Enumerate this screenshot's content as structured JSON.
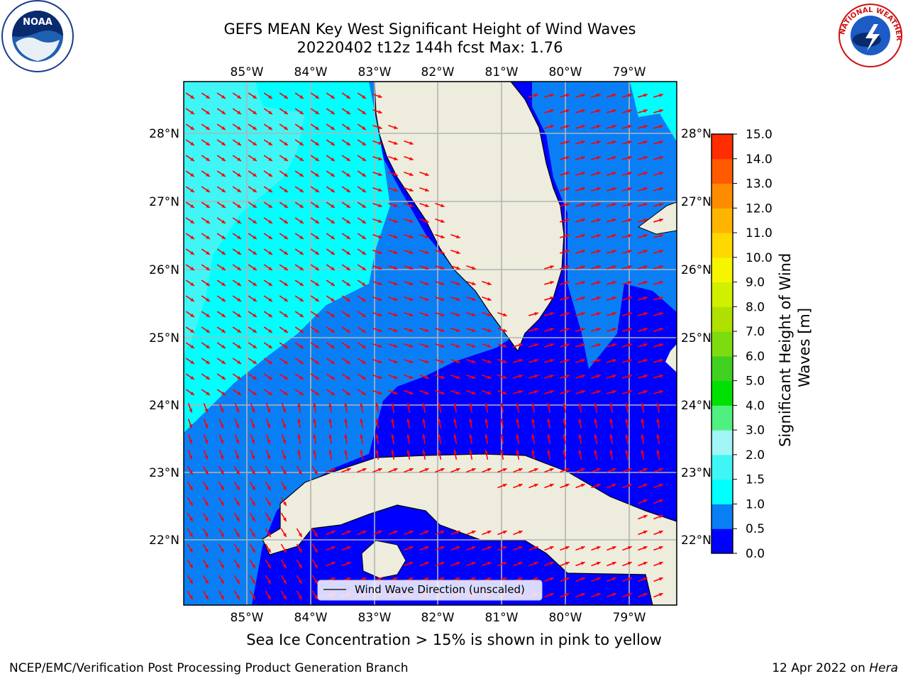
{
  "title_line1": "GEFS MEAN Key West Significant Height of Wind Waves",
  "title_line2": "20220402 t12z 144h fcst   Max: 1.76",
  "lon_labels": [
    "85°W",
    "84°W",
    "83°W",
    "82°W",
    "81°W",
    "80°W",
    "79°W"
  ],
  "lat_labels": [
    "28°N",
    "27°N",
    "26°N",
    "25°N",
    "24°N",
    "23°N",
    "22°N"
  ],
  "legend_label": "Wind Wave Direction (unscaled)",
  "colorbar": {
    "title": "Significant Height of Wind Waves [m]",
    "tick_labels": [
      "0.0",
      "0.5",
      "1.0",
      "1.5",
      "2.0",
      "3.0",
      "4.0",
      "5.0",
      "6.0",
      "7.0",
      "8.0",
      "9.0",
      "10.0",
      "11.0",
      "12.0",
      "13.0",
      "14.0",
      "15.0"
    ],
    "colors": [
      "#0000ff",
      "#0a7ff5",
      "#00ffff",
      "#40f5f5",
      "#a0f5f5",
      "#50f080",
      "#00e000",
      "#40d020",
      "#7ddc10",
      "#b0e000",
      "#d0f000",
      "#f5f500",
      "#ffd800",
      "#ffb400",
      "#ff8c00",
      "#ff5a00",
      "#ff2d00",
      "#ff0000"
    ]
  },
  "footnote": "Sea Ice Concentration > 15% is shown in pink to yellow",
  "credit_left": "NCEP/EMC/Verification Post Processing Product Generation Branch",
  "credit_right_date": "12 Apr 2022 on",
  "credit_right_host": "Hera",
  "logos": {
    "left": "noaa-logo",
    "right": "nws-logo"
  },
  "logo_text": {
    "noaa": "NOAA",
    "nws": "NATIONAL WEATHER SERVICE"
  },
  "field_colors": {
    "land": "#eeecdd",
    "arrow": "#ff0000",
    "grid": "#b4b4b4"
  }
}
